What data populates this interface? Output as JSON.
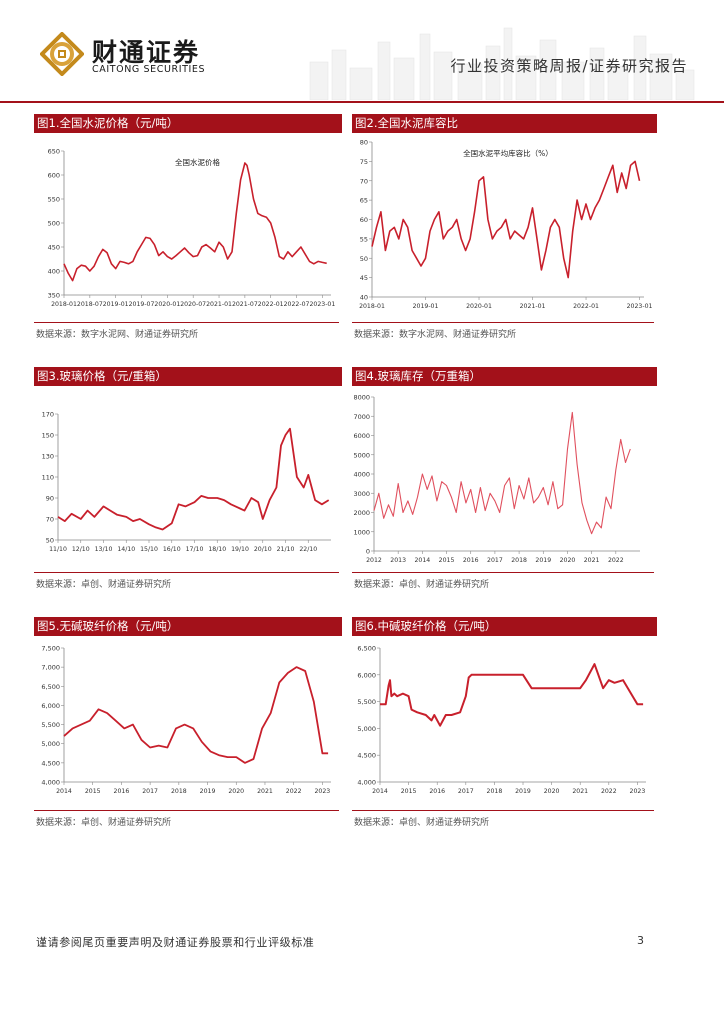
{
  "header": {
    "company_cn": "财通证券",
    "company_en": "CAITONG SECURITIES",
    "report_type": "行业投资策略周报/证券研究报告"
  },
  "colors": {
    "brand": "#a3111a",
    "series": "#c8202c",
    "series_light": "#e0505e"
  },
  "figures": [
    {
      "title": "图1.全国水泥价格（元/吨）",
      "source": "数据来源：数字水泥网、财通证券研究所"
    },
    {
      "title": "图2.全国水泥库容比",
      "source": "数据来源：数字水泥网、财通证券研究所"
    },
    {
      "title": "图3.玻璃价格（元/重箱）",
      "source": "数据来源：卓创、财通证券研究所"
    },
    {
      "title": "图4.玻璃库存（万重箱）",
      "source": "数据来源：卓创、财通证券研究所"
    },
    {
      "title": "图5.无碱玻纤价格（元/吨）",
      "source": "数据来源：卓创、财通证券研究所"
    },
    {
      "title": "图6.中碱玻纤价格（元/吨）",
      "source": "数据来源：卓创、财通证券研究所"
    }
  ],
  "footer": {
    "disclaimer": "谨请参阅尾页重要声明及财通证券股票和行业评级标准",
    "page": "3"
  },
  "chart_data": [
    {
      "type": "line",
      "title": "全国水泥价格",
      "ylim": [
        350,
        650
      ],
      "yticks": [
        350,
        400,
        450,
        500,
        550,
        600,
        650
      ],
      "xlim": [
        0,
        62
      ],
      "xticks": [
        [
          0,
          "2018-01"
        ],
        [
          6,
          "2018-07"
        ],
        [
          12,
          "2019-01"
        ],
        [
          18,
          "2019-07"
        ],
        [
          24,
          "2020-01"
        ],
        [
          30,
          "2020-07"
        ],
        [
          36,
          "2021-01"
        ],
        [
          42,
          "2021-07"
        ],
        [
          48,
          "2022-01"
        ],
        [
          54,
          "2022-07"
        ],
        [
          60,
          "2023-01"
        ]
      ],
      "x": [
        0,
        1,
        2,
        3,
        4,
        5,
        6,
        7,
        8,
        9,
        10,
        11,
        12,
        13,
        14,
        15,
        16,
        17,
        18,
        19,
        20,
        21,
        22,
        23,
        24,
        25,
        26,
        27,
        28,
        29,
        30,
        31,
        32,
        33,
        34,
        35,
        36,
        37,
        38,
        39,
        40,
        41,
        42,
        42.5,
        43,
        44,
        45,
        46,
        47,
        48,
        49,
        50,
        51,
        52,
        53,
        54,
        55,
        56,
        57,
        58,
        59,
        60,
        61
      ],
      "y": [
        415,
        395,
        380,
        405,
        412,
        410,
        400,
        410,
        430,
        445,
        438,
        415,
        405,
        420,
        418,
        415,
        420,
        440,
        455,
        470,
        468,
        455,
        432,
        440,
        430,
        425,
        432,
        440,
        448,
        438,
        430,
        432,
        450,
        455,
        448,
        440,
        460,
        450,
        425,
        440,
        520,
        590,
        625,
        620,
        600,
        550,
        520,
        515,
        512,
        500,
        470,
        430,
        425,
        440,
        430,
        440,
        450,
        435,
        420,
        415,
        420,
        418,
        416
      ]
    },
    {
      "type": "line",
      "title": "全国水泥平均库容比（%）",
      "ylim": [
        40,
        80
      ],
      "yticks": [
        40,
        45,
        50,
        55,
        60,
        65,
        70,
        75,
        80
      ],
      "xlim": [
        0,
        61
      ],
      "xticks": [
        [
          0,
          "2018-01"
        ],
        [
          12,
          "2019-01"
        ],
        [
          24,
          "2020-01"
        ],
        [
          36,
          "2021-01"
        ],
        [
          48,
          "2022-01"
        ],
        [
          60,
          "2023-01"
        ]
      ],
      "x": [
        0,
        1,
        2,
        3,
        4,
        5,
        6,
        7,
        8,
        9,
        10,
        11,
        12,
        13,
        14,
        15,
        16,
        17,
        18,
        19,
        20,
        21,
        22,
        23,
        24,
        25,
        26,
        27,
        28,
        29,
        30,
        31,
        32,
        33,
        34,
        35,
        36,
        37,
        38,
        39,
        40,
        41,
        42,
        43,
        44,
        45,
        46,
        47,
        48,
        49,
        50,
        51,
        52,
        53,
        54,
        55,
        56,
        57,
        58,
        59,
        60
      ],
      "y": [
        53,
        58,
        62,
        52,
        57,
        58,
        55,
        60,
        58,
        52,
        50,
        48,
        50,
        57,
        60,
        62,
        55,
        57,
        58,
        60,
        55,
        52,
        55,
        62,
        70,
        71,
        60,
        55,
        57,
        58,
        60,
        55,
        57,
        56,
        55,
        58,
        63,
        55,
        47,
        52,
        58,
        60,
        58,
        50,
        45,
        57,
        65,
        60,
        64,
        60,
        63,
        65,
        68,
        71,
        74,
        67,
        72,
        68,
        74,
        75,
        70
      ]
    },
    {
      "type": "line",
      "title": "玻璃价格",
      "ylim": [
        50,
        170
      ],
      "yticks": [
        50,
        70,
        90,
        110,
        130,
        150,
        170
      ],
      "xlim": [
        0,
        12
      ],
      "xticks": [
        [
          0,
          "11/10"
        ],
        [
          1,
          "12/10"
        ],
        [
          2,
          "13/10"
        ],
        [
          3,
          "14/10"
        ],
        [
          4,
          "15/10"
        ],
        [
          5,
          "16/10"
        ],
        [
          6,
          "17/10"
        ],
        [
          7,
          "18/10"
        ],
        [
          8,
          "19/10"
        ],
        [
          9,
          "20/10"
        ],
        [
          10,
          "21/10"
        ],
        [
          11,
          "22/10"
        ]
      ],
      "x": [
        0,
        0.3,
        0.6,
        1,
        1.3,
        1.6,
        2,
        2.3,
        2.6,
        3,
        3.3,
        3.6,
        4,
        4.3,
        4.6,
        5,
        5.3,
        5.6,
        6,
        6.3,
        6.6,
        7,
        7.3,
        7.6,
        8,
        8.2,
        8.5,
        8.8,
        9,
        9.3,
        9.6,
        9.8,
        10,
        10.2,
        10.5,
        10.8,
        11,
        11.3,
        11.6,
        11.9
      ],
      "y": [
        72,
        68,
        75,
        70,
        78,
        72,
        82,
        78,
        74,
        72,
        68,
        70,
        65,
        62,
        60,
        66,
        84,
        82,
        86,
        92,
        90,
        90,
        88,
        84,
        80,
        78,
        90,
        86,
        70,
        88,
        100,
        140,
        150,
        156,
        110,
        100,
        112,
        88,
        84,
        88
      ]
    },
    {
      "type": "line",
      "title": "玻璃库存",
      "ylim": [
        0,
        8000
      ],
      "yticks": [
        0,
        1000,
        2000,
        3000,
        4000,
        5000,
        6000,
        7000,
        8000
      ],
      "xlim": [
        0,
        11
      ],
      "xticks": [
        [
          0,
          "2012"
        ],
        [
          1,
          "2013"
        ],
        [
          2,
          "2014"
        ],
        [
          3,
          "2015"
        ],
        [
          4,
          "2016"
        ],
        [
          5,
          "2017"
        ],
        [
          6,
          "2018"
        ],
        [
          7,
          "2019"
        ],
        [
          8,
          "2020"
        ],
        [
          9,
          "2021"
        ],
        [
          10,
          "2022"
        ]
      ],
      "x": [
        0,
        0.2,
        0.4,
        0.6,
        0.8,
        1,
        1.2,
        1.4,
        1.6,
        1.8,
        2,
        2.2,
        2.4,
        2.6,
        2.8,
        3,
        3.2,
        3.4,
        3.6,
        3.8,
        4,
        4.2,
        4.4,
        4.6,
        4.8,
        5,
        5.2,
        5.4,
        5.6,
        5.8,
        6,
        6.2,
        6.4,
        6.6,
        6.8,
        7,
        7.2,
        7.4,
        7.6,
        7.8,
        8,
        8.2,
        8.4,
        8.6,
        8.8,
        9,
        9.2,
        9.4,
        9.6,
        9.8,
        10,
        10.2,
        10.4,
        10.6
      ],
      "y": [
        2100,
        3000,
        1700,
        2400,
        1800,
        3500,
        2000,
        2600,
        1900,
        2800,
        4000,
        3200,
        3900,
        2600,
        3600,
        3400,
        2800,
        2000,
        3600,
        2500,
        3200,
        2000,
        3300,
        2100,
        3000,
        2600,
        2000,
        3400,
        3800,
        2200,
        3400,
        2700,
        3800,
        2500,
        2800,
        3300,
        2400,
        3600,
        2200,
        2400,
        5300,
        7200,
        4500,
        2500,
        1600,
        900,
        1500,
        1200,
        2800,
        2200,
        4200,
        5800,
        4600,
        5300
      ]
    },
    {
      "type": "line",
      "title": "无碱玻纤价格",
      "ylim": [
        4000,
        7500
      ],
      "yticks": [
        4000,
        4500,
        5000,
        5500,
        6000,
        6500,
        7000,
        7500
      ],
      "xlim": [
        0,
        9.3
      ],
      "xticks": [
        [
          0,
          "2014"
        ],
        [
          1,
          "2015"
        ],
        [
          2,
          "2016"
        ],
        [
          3,
          "2017"
        ],
        [
          4,
          "2018"
        ],
        [
          5,
          "2019"
        ],
        [
          6,
          "2020"
        ],
        [
          7,
          "2021"
        ],
        [
          8,
          "2022"
        ],
        [
          9,
          "2023"
        ]
      ],
      "x": [
        0,
        0.3,
        0.6,
        0.9,
        1.2,
        1.5,
        1.8,
        2.1,
        2.4,
        2.7,
        3,
        3.3,
        3.6,
        3.9,
        4.2,
        4.5,
        4.8,
        5.1,
        5.4,
        5.7,
        6,
        6.3,
        6.6,
        6.9,
        7.2,
        7.5,
        7.8,
        8.1,
        8.4,
        8.7,
        9,
        9.2
      ],
      "y": [
        5200,
        5400,
        5500,
        5600,
        5900,
        5800,
        5600,
        5400,
        5500,
        5100,
        4900,
        4950,
        4900,
        5400,
        5500,
        5400,
        5050,
        4800,
        4700,
        4650,
        4650,
        4500,
        4600,
        5400,
        5800,
        6600,
        6850,
        7000,
        6900,
        6100,
        4750,
        4750
      ]
    },
    {
      "type": "line",
      "title": "中碱玻纤价格",
      "ylim": [
        4000,
        6500
      ],
      "yticks": [
        4000,
        4500,
        5000,
        5500,
        6000,
        6500
      ],
      "xlim": [
        0,
        9.3
      ],
      "xticks": [
        [
          0,
          "2014"
        ],
        [
          1,
          "2015"
        ],
        [
          2,
          "2016"
        ],
        [
          3,
          "2017"
        ],
        [
          4,
          "2018"
        ],
        [
          5,
          "2019"
        ],
        [
          6,
          "2020"
        ],
        [
          7,
          "2021"
        ],
        [
          8,
          "2022"
        ],
        [
          9,
          "2023"
        ]
      ],
      "x": [
        0,
        0.2,
        0.3,
        0.35,
        0.4,
        0.5,
        0.6,
        0.8,
        1,
        1.1,
        1.3,
        1.6,
        1.8,
        1.9,
        2.1,
        2.3,
        2.5,
        2.8,
        3,
        3.1,
        3.2,
        3.3,
        3.5,
        4,
        5,
        5.3,
        6,
        7,
        7.2,
        7.5,
        7.8,
        8,
        8.2,
        8.5,
        9,
        9.2
      ],
      "y": [
        5450,
        5450,
        5800,
        5900,
        5600,
        5650,
        5600,
        5650,
        5600,
        5350,
        5300,
        5250,
        5150,
        5250,
        5050,
        5250,
        5250,
        5300,
        5600,
        5950,
        6000,
        6000,
        6000,
        6000,
        6000,
        5750,
        5750,
        5750,
        5900,
        6200,
        5750,
        5900,
        5850,
        5900,
        5450,
        5450
      ]
    }
  ]
}
